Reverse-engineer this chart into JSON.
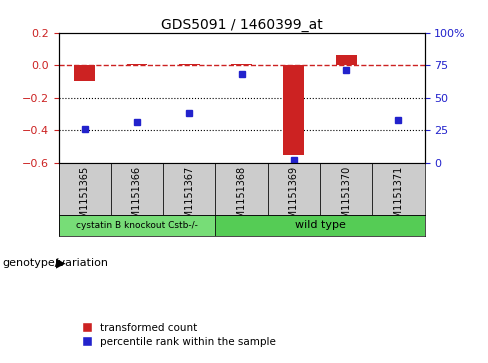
{
  "title": "GDS5091 / 1460399_at",
  "samples": [
    "GSM1151365",
    "GSM1151366",
    "GSM1151367",
    "GSM1151368",
    "GSM1151369",
    "GSM1151370",
    "GSM1151371"
  ],
  "transformed_count": [
    -0.1,
    0.01,
    0.005,
    0.01,
    -0.55,
    0.06,
    0.002
  ],
  "percentile_rank": [
    26,
    31,
    38,
    68,
    2,
    71,
    33
  ],
  "ylim_left": [
    -0.6,
    0.2
  ],
  "ylim_right": [
    0,
    100
  ],
  "bar_color": "#cc2222",
  "dot_color": "#2222cc",
  "dashed_line_color": "#cc2222",
  "groups": [
    {
      "label": "cystatin B knockout Cstb-/-",
      "start": 0,
      "end": 2,
      "color": "#77dd77"
    },
    {
      "label": "wild type",
      "start": 3,
      "end": 6,
      "color": "#55cc55"
    }
  ],
  "sample_box_color": "#cccccc",
  "genotype_label": "genotype/variation",
  "legend_bar_label": "transformed count",
  "legend_dot_label": "percentile rank within the sample",
  "background_color": "#ffffff",
  "plot_bg": "#ffffff",
  "tick_label_color_left": "#cc2222",
  "tick_label_color_right": "#2222cc"
}
